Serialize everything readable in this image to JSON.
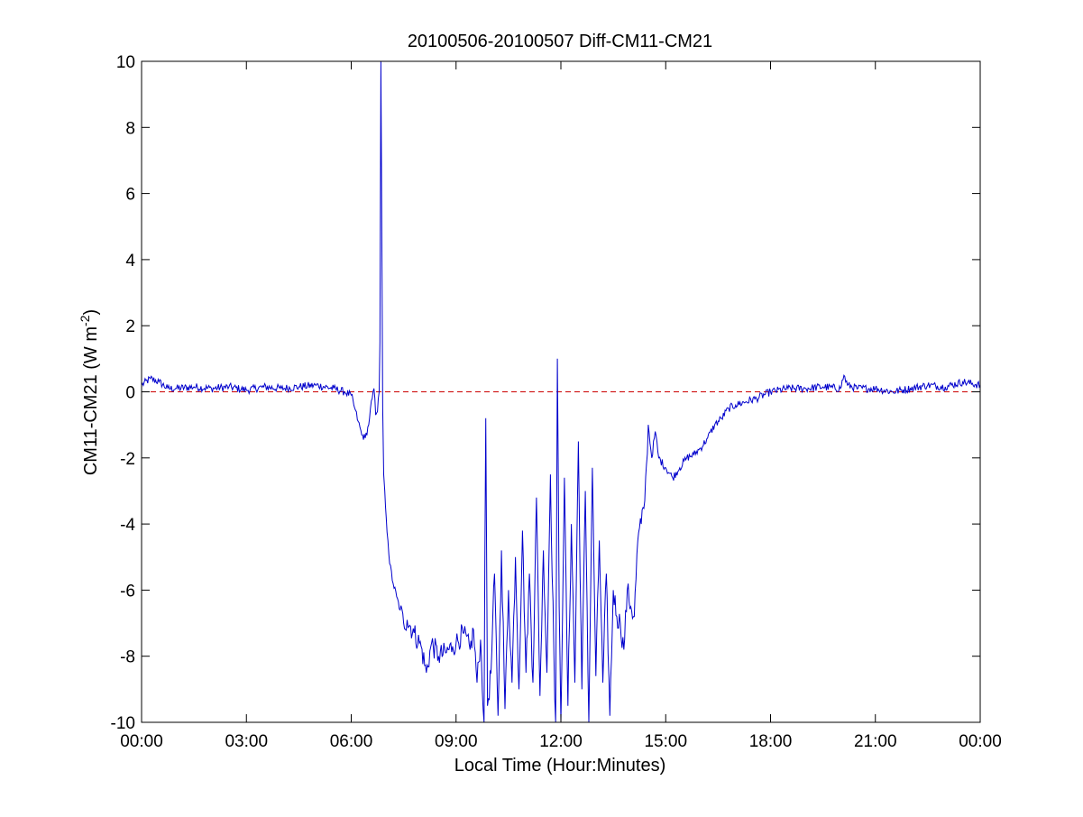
{
  "chart_data": {
    "type": "line",
    "title": "20100506-20100507 Diff-CM11-CM21",
    "xlabel": "Local Time (Hour:Minutes)",
    "ylabel": "CM11-CM21 (W m-2)",
    "ylabel_parts": {
      "main": "CM11-CM21 (W m",
      "sup": "-2",
      "close": ")"
    },
    "x_unit": "hours",
    "xlim": [
      0,
      24
    ],
    "ylim": [
      -10,
      10
    ],
    "x_ticks": [
      0,
      3,
      6,
      9,
      12,
      15,
      18,
      21,
      24
    ],
    "x_tick_labels": [
      "00:00",
      "03:00",
      "06:00",
      "09:00",
      "12:00",
      "15:00",
      "18:00",
      "21:00",
      "00:00"
    ],
    "y_ticks": [
      -10,
      -8,
      -6,
      -4,
      -2,
      0,
      2,
      4,
      6,
      8,
      10
    ],
    "y_tick_labels": [
      "-10",
      "-8",
      "-6",
      "-4",
      "-2",
      "0",
      "2",
      "4",
      "6",
      "8",
      "10"
    ],
    "grid": false,
    "reference_line": {
      "y": 0,
      "color": "#cc0000",
      "style": "dashed"
    },
    "series": [
      {
        "color": "#0000cc",
        "x": [
          0.0,
          0.25,
          0.5,
          0.75,
          1.0,
          1.5,
          2.0,
          2.5,
          3.0,
          3.5,
          4.0,
          4.5,
          5.0,
          5.5,
          5.8,
          6.0,
          6.1,
          6.2,
          6.3,
          6.4,
          6.5,
          6.55,
          6.6,
          6.65,
          6.7,
          6.75,
          6.8,
          6.82,
          6.85,
          6.88,
          6.9,
          6.93,
          6.96,
          7.0,
          7.05,
          7.1,
          7.2,
          7.3,
          7.4,
          7.5,
          7.6,
          7.8,
          8.0,
          8.15,
          8.3,
          8.5,
          8.7,
          8.9,
          9.0,
          9.2,
          9.4,
          9.5,
          9.6,
          9.7,
          9.8,
          9.85,
          9.9,
          10.0,
          10.1,
          10.2,
          10.3,
          10.4,
          10.5,
          10.6,
          10.7,
          10.8,
          10.9,
          11.0,
          11.1,
          11.2,
          11.3,
          11.4,
          11.5,
          11.6,
          11.7,
          11.8,
          11.85,
          11.9,
          11.95,
          12.0,
          12.1,
          12.2,
          12.3,
          12.4,
          12.5,
          12.6,
          12.7,
          12.8,
          12.9,
          13.0,
          13.1,
          13.2,
          13.3,
          13.4,
          13.5,
          13.6,
          13.7,
          13.8,
          13.9,
          14.0,
          14.1,
          14.2,
          14.3,
          14.35,
          14.4,
          14.45,
          14.5,
          14.6,
          14.7,
          14.8,
          15.0,
          15.2,
          15.4,
          15.6,
          15.8,
          16.0,
          16.2,
          16.4,
          16.6,
          16.8,
          17.0,
          17.3,
          17.6,
          18.0,
          18.5,
          19.0,
          19.5,
          20.0,
          20.1,
          20.2,
          20.5,
          21.0,
          21.5,
          22.0,
          22.5,
          23.0,
          23.5,
          24.0
        ],
        "y": [
          0.2,
          0.4,
          0.3,
          0.1,
          0.1,
          0.15,
          0.1,
          0.15,
          0.05,
          0.15,
          0.1,
          0.15,
          0.2,
          0.1,
          0.0,
          -0.1,
          -0.5,
          -0.9,
          -1.3,
          -1.4,
          -1.0,
          -0.5,
          -0.2,
          0.1,
          -0.7,
          -0.6,
          0.0,
          1.5,
          10.0,
          3.8,
          -0.5,
          -2.5,
          -3.0,
          -3.8,
          -4.5,
          -5.2,
          -5.8,
          -6.2,
          -6.6,
          -7.0,
          -6.9,
          -7.3,
          -7.7,
          -8.5,
          -7.6,
          -8.0,
          -7.9,
          -7.7,
          -7.6,
          -7.3,
          -7.8,
          -7.2,
          -8.8,
          -7.5,
          -10.0,
          -0.8,
          -9.5,
          -8.5,
          -5.5,
          -9.8,
          -4.8,
          -9.6,
          -6.0,
          -8.8,
          -5.0,
          -9.0,
          -4.2,
          -8.5,
          -5.5,
          -8.8,
          -3.2,
          -9.2,
          -4.8,
          -8.5,
          -2.5,
          -8.0,
          -10.0,
          1.0,
          -6.5,
          -10.0,
          -2.6,
          -9.5,
          -4.0,
          -8.8,
          -1.5,
          -9.0,
          -3.0,
          -10.0,
          -2.3,
          -8.6,
          -4.5,
          -8.8,
          -5.5,
          -9.8,
          -6.0,
          -6.8,
          -7.0,
          -7.8,
          -6.0,
          -6.5,
          -6.8,
          -4.5,
          -4.0,
          -3.5,
          -3.3,
          -2.2,
          -1.0,
          -2.0,
          -1.2,
          -2.0,
          -2.3,
          -2.6,
          -2.3,
          -2.0,
          -1.9,
          -1.7,
          -1.4,
          -1.0,
          -0.8,
          -0.5,
          -0.4,
          -0.3,
          -0.2,
          0.0,
          0.1,
          0.1,
          0.15,
          0.1,
          0.5,
          0.2,
          0.1,
          0.1,
          0.0,
          0.1,
          0.2,
          0.15,
          0.3,
          0.2
        ]
      }
    ]
  }
}
